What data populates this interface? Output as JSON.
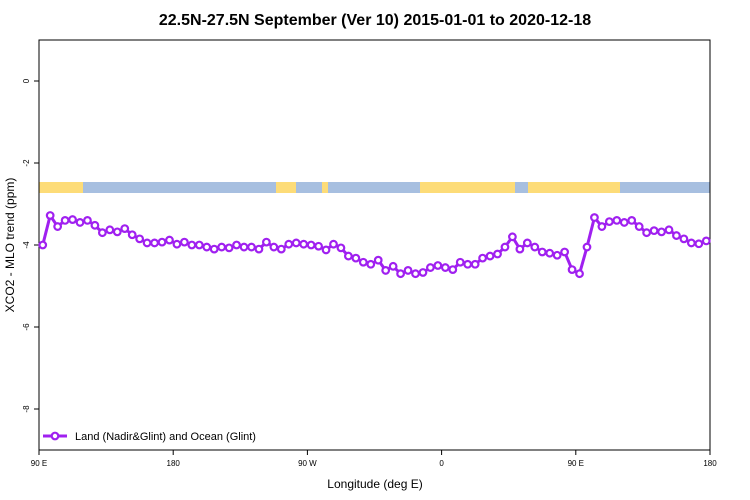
{
  "chart_data": {
    "type": "line",
    "title": "22.5N-27.5N September (Ver 10)   2015-01-01 to 2020-12-18",
    "x_label": "Longitude (deg E)",
    "y_label": "XCO2 - MLO trend (ppm)",
    "xlim": [
      90,
      540
    ],
    "ylim": [
      -9,
      1
    ],
    "xticks": [
      {
        "value": 90,
        "label": "90 E"
      },
      180,
      {
        "value": 270,
        "label": "90 W"
      },
      {
        "value": 360,
        "label": "0"
      },
      {
        "value": 450,
        "label": "90 E"
      },
      {
        "value": 540,
        "label": "180"
      }
    ],
    "yticks": [
      -8,
      -6,
      -4,
      -2,
      0
    ],
    "legend": "bottom-left",
    "x": [
      92.5,
      97.5,
      102.5,
      107.5,
      112.5,
      117.5,
      122.5,
      127.5,
      132.5,
      137.5,
      142.5,
      147.5,
      152.5,
      157.5,
      162.5,
      167.5,
      172.5,
      177.5,
      182.5,
      187.5,
      192.5,
      197.5,
      202.5,
      207.5,
      212.5,
      217.5,
      222.5,
      227.5,
      232.5,
      237.5,
      242.5,
      247.5,
      252.5,
      257.5,
      262.5,
      267.5,
      272.5,
      277.5,
      282.5,
      287.5,
      292.5,
      297.5,
      302.5,
      307.5,
      312.5,
      317.5,
      322.5,
      327.5,
      332.5,
      337.5,
      342.5,
      347.5,
      352.5,
      357.5,
      362.5,
      367.5,
      372.5,
      377.5,
      382.5,
      387.5,
      392.5,
      397.5,
      402.5,
      407.5,
      412.5,
      417.5,
      422.5,
      427.5,
      432.5,
      437.5,
      442.5,
      447.5,
      452.5,
      457.5,
      462.5,
      467.5,
      472.5,
      477.5,
      482.5,
      487.5,
      492.5,
      497.5,
      502.5,
      507.5,
      512.5,
      517.5,
      522.5,
      527.5,
      532.5,
      537.5
    ],
    "series": [
      {
        "name": "Land (Nadir&Glint) and Ocean (Glint)",
        "color": "#a020f0",
        "values": [
          -4.0,
          -3.28,
          -3.55,
          -3.4,
          -3.38,
          -3.45,
          -3.4,
          -3.52,
          -3.7,
          -3.63,
          -3.68,
          -3.6,
          -3.75,
          -3.85,
          -3.95,
          -3.95,
          -3.93,
          -3.88,
          -3.98,
          -3.93,
          -4.0,
          -4.0,
          -4.05,
          -4.1,
          -4.05,
          -4.07,
          -4.0,
          -4.05,
          -4.05,
          -4.1,
          -3.93,
          -4.05,
          -4.1,
          -3.98,
          -3.95,
          -3.98,
          -4.0,
          -4.03,
          -4.12,
          -3.98,
          -4.07,
          -4.27,
          -4.32,
          -4.42,
          -4.47,
          -4.37,
          -4.62,
          -4.52,
          -4.7,
          -4.62,
          -4.7,
          -4.67,
          -4.55,
          -4.5,
          -4.55,
          -4.6,
          -4.42,
          -4.47,
          -4.47,
          -4.32,
          -4.27,
          -4.22,
          -4.05,
          -3.8,
          -4.1,
          -3.95,
          -4.05,
          -4.17,
          -4.2,
          -4.25,
          -4.17,
          -4.6,
          -4.7,
          -4.05,
          -3.33,
          -3.55,
          -3.43,
          -3.4,
          -3.45,
          -3.4,
          -3.55,
          -3.7,
          -3.65,
          -3.68,
          -3.63,
          -3.77,
          -3.85,
          -3.95,
          -3.97,
          -3.9
        ]
      }
    ]
  }
}
